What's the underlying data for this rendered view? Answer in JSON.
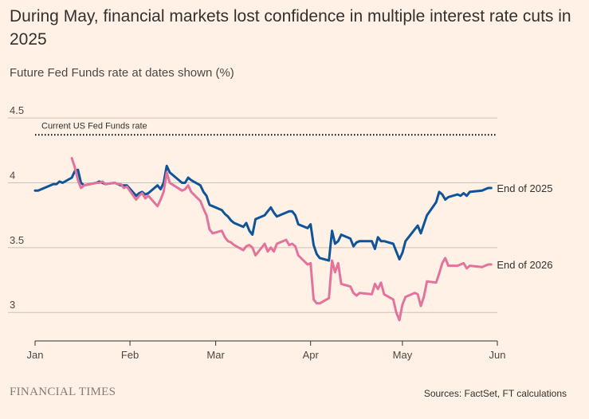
{
  "header": {
    "title": "During May, financial markets lost confidence in multiple interest rate cuts in 2025",
    "subtitle": "Future Fed Funds rate at dates shown (%)"
  },
  "footer": {
    "brand": "FINANCIAL TIMES",
    "source": "Sources: FactSet, FT calculations"
  },
  "chart_data": {
    "type": "line",
    "title": "During May, financial markets lost confidence in multiple interest rate cuts in 2025",
    "ylabel": "Future Fed Funds rate at dates shown (%)",
    "ylim": [
      2.78,
      4.55
    ],
    "xlim": [
      "2025-01-01",
      "2025-06-01"
    ],
    "yticks": [
      3,
      3.5,
      4,
      4.5
    ],
    "ytick_labels": [
      "3",
      "3.5",
      "4",
      "4.5"
    ],
    "xticks": [
      "2025-01-01",
      "2025-02-01",
      "2025-03-01",
      "2025-04-01",
      "2025-05-01",
      "2025-06-01"
    ],
    "xtick_labels": [
      "Jan",
      "Feb",
      "Mar",
      "Apr",
      "May",
      "Jun"
    ],
    "grid": true,
    "legend": "inline labels at right end of lines",
    "reference_line": {
      "label": "Current US Fed Funds rate",
      "value": 4.37,
      "style": "dotted",
      "color": "#000000"
    },
    "series": [
      {
        "name": "End of 2025",
        "color": "#0f5499",
        "x": [
          "2025-01-01",
          "2025-01-02",
          "2025-01-03",
          "2025-01-06",
          "2025-01-07",
          "2025-01-08",
          "2025-01-09",
          "2025-01-10",
          "2025-01-13",
          "2025-01-14",
          "2025-01-15",
          "2025-01-16",
          "2025-01-17",
          "2025-01-21",
          "2025-01-22",
          "2025-01-23",
          "2025-01-24",
          "2025-01-27",
          "2025-01-28",
          "2025-01-29",
          "2025-01-30",
          "2025-01-31",
          "2025-02-03",
          "2025-02-04",
          "2025-02-05",
          "2025-02-06",
          "2025-02-07",
          "2025-02-10",
          "2025-02-11",
          "2025-02-12",
          "2025-02-13",
          "2025-02-14",
          "2025-02-18",
          "2025-02-19",
          "2025-02-20",
          "2025-02-21",
          "2025-02-24",
          "2025-02-25",
          "2025-02-26",
          "2025-02-27",
          "2025-02-28",
          "2025-03-03",
          "2025-03-04",
          "2025-03-05",
          "2025-03-06",
          "2025-03-07",
          "2025-03-10",
          "2025-03-11",
          "2025-03-12",
          "2025-03-13",
          "2025-03-14",
          "2025-03-17",
          "2025-03-18",
          "2025-03-19",
          "2025-03-20",
          "2025-03-21",
          "2025-03-24",
          "2025-03-25",
          "2025-03-26",
          "2025-03-27",
          "2025-03-28",
          "2025-03-31",
          "2025-04-01",
          "2025-04-02",
          "2025-04-03",
          "2025-04-04",
          "2025-04-07",
          "2025-04-08",
          "2025-04-09",
          "2025-04-10",
          "2025-04-11",
          "2025-04-14",
          "2025-04-15",
          "2025-04-16",
          "2025-04-17",
          "2025-04-21",
          "2025-04-22",
          "2025-04-23",
          "2025-04-24",
          "2025-04-25",
          "2025-04-28",
          "2025-04-29",
          "2025-04-30",
          "2025-05-01",
          "2025-05-02",
          "2025-05-05",
          "2025-05-06",
          "2025-05-07",
          "2025-05-08",
          "2025-05-09",
          "2025-05-12",
          "2025-05-13",
          "2025-05-14",
          "2025-05-15",
          "2025-05-16",
          "2025-05-19",
          "2025-05-20",
          "2025-05-21",
          "2025-05-22",
          "2025-05-23",
          "2025-05-27",
          "2025-05-28",
          "2025-05-29",
          "2025-05-30"
        ],
        "y": [
          3.94,
          3.94,
          3.95,
          3.98,
          3.99,
          3.99,
          4.01,
          4.0,
          4.04,
          4.09,
          4.1,
          4.0,
          3.98,
          4.0,
          4.01,
          4.0,
          3.99,
          4.0,
          3.99,
          3.98,
          3.98,
          3.98,
          3.9,
          3.92,
          3.93,
          3.91,
          3.92,
          3.98,
          3.95,
          4.0,
          4.13,
          4.08,
          4.0,
          4.0,
          4.04,
          4.02,
          3.98,
          3.93,
          3.9,
          3.83,
          3.82,
          3.79,
          3.76,
          3.74,
          3.71,
          3.69,
          3.66,
          3.69,
          3.63,
          3.6,
          3.72,
          3.75,
          3.78,
          3.81,
          3.77,
          3.74,
          3.77,
          3.78,
          3.78,
          3.75,
          3.68,
          3.65,
          3.68,
          3.52,
          3.45,
          3.42,
          3.4,
          3.63,
          3.53,
          3.55,
          3.6,
          3.57,
          3.51,
          3.54,
          3.55,
          3.55,
          3.49,
          3.58,
          3.55,
          3.55,
          3.53,
          3.47,
          3.41,
          3.46,
          3.55,
          3.64,
          3.67,
          3.61,
          3.68,
          3.75,
          3.85,
          3.93,
          3.91,
          3.87,
          3.89,
          3.91,
          3.9,
          3.92,
          3.9,
          3.93,
          3.94,
          3.95,
          3.96,
          3.96
        ]
      },
      {
        "name": "End of 2026",
        "color": "#e3739c",
        "x": [
          "2025-01-13",
          "2025-01-14",
          "2025-01-15",
          "2025-01-16",
          "2025-01-17",
          "2025-01-21",
          "2025-01-22",
          "2025-01-23",
          "2025-01-24",
          "2025-01-27",
          "2025-01-28",
          "2025-01-29",
          "2025-01-30",
          "2025-01-31",
          "2025-02-03",
          "2025-02-04",
          "2025-02-05",
          "2025-02-06",
          "2025-02-07",
          "2025-02-10",
          "2025-02-11",
          "2025-02-12",
          "2025-02-13",
          "2025-02-14",
          "2025-02-18",
          "2025-02-19",
          "2025-02-20",
          "2025-02-21",
          "2025-02-24",
          "2025-02-25",
          "2025-02-26",
          "2025-02-27",
          "2025-02-28",
          "2025-03-03",
          "2025-03-04",
          "2025-03-05",
          "2025-03-06",
          "2025-03-07",
          "2025-03-10",
          "2025-03-11",
          "2025-03-12",
          "2025-03-13",
          "2025-03-14",
          "2025-03-17",
          "2025-03-18",
          "2025-03-19",
          "2025-03-20",
          "2025-03-21",
          "2025-03-24",
          "2025-03-25",
          "2025-03-26",
          "2025-03-27",
          "2025-03-28",
          "2025-03-31",
          "2025-04-01",
          "2025-04-02",
          "2025-04-03",
          "2025-04-04",
          "2025-04-07",
          "2025-04-08",
          "2025-04-09",
          "2025-04-10",
          "2025-04-11",
          "2025-04-14",
          "2025-04-15",
          "2025-04-16",
          "2025-04-17",
          "2025-04-21",
          "2025-04-22",
          "2025-04-23",
          "2025-04-24",
          "2025-04-25",
          "2025-04-28",
          "2025-04-29",
          "2025-04-30",
          "2025-05-01",
          "2025-05-02",
          "2025-05-05",
          "2025-05-06",
          "2025-05-07",
          "2025-05-08",
          "2025-05-09",
          "2025-05-12",
          "2025-05-13",
          "2025-05-14",
          "2025-05-15",
          "2025-05-16",
          "2025-05-19",
          "2025-05-20",
          "2025-05-21",
          "2025-05-22",
          "2025-05-23",
          "2025-05-27",
          "2025-05-28",
          "2025-05-29",
          "2025-05-30"
        ],
        "y": [
          4.19,
          4.12,
          4.02,
          3.96,
          3.98,
          4.0,
          4.0,
          4.01,
          3.99,
          4.0,
          3.99,
          3.99,
          3.96,
          3.97,
          3.87,
          3.9,
          3.92,
          3.88,
          3.9,
          3.82,
          3.87,
          3.93,
          4.08,
          4.0,
          3.94,
          3.95,
          3.98,
          3.93,
          3.86,
          3.8,
          3.75,
          3.64,
          3.61,
          3.63,
          3.58,
          3.55,
          3.54,
          3.52,
          3.48,
          3.51,
          3.52,
          3.5,
          3.44,
          3.53,
          3.47,
          3.5,
          3.47,
          3.53,
          3.56,
          3.52,
          3.53,
          3.51,
          3.44,
          3.37,
          3.38,
          3.1,
          3.07,
          3.07,
          3.11,
          3.4,
          3.31,
          3.38,
          3.22,
          3.2,
          3.15,
          3.13,
          3.15,
          3.14,
          3.22,
          3.18,
          3.23,
          3.14,
          3.1,
          3.0,
          2.94,
          3.06,
          3.12,
          3.15,
          3.14,
          3.05,
          3.12,
          3.24,
          3.23,
          3.3,
          3.38,
          3.42,
          3.36,
          3.36,
          3.37,
          3.38,
          3.34,
          3.36,
          3.35,
          3.36,
          3.37,
          3.37
        ]
      }
    ]
  }
}
